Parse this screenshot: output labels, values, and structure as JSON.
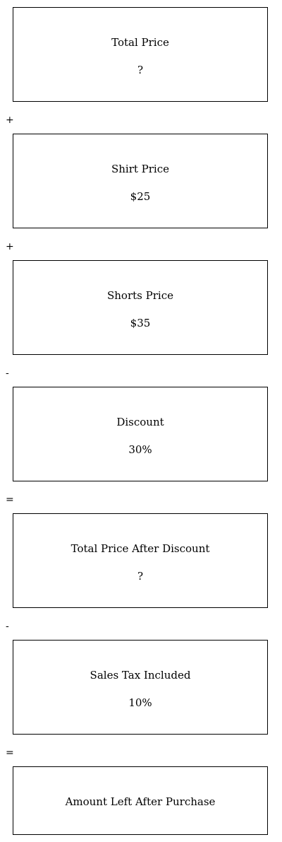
{
  "steps": [
    {
      "label": "Total Price",
      "value": "?"
    },
    {
      "operator": "+"
    },
    {
      "label": "Shirt Price",
      "value": "$25"
    },
    {
      "operator": "+"
    },
    {
      "label": "Shorts Price",
      "value": "$35"
    },
    {
      "operator": "-"
    },
    {
      "label": "Discount",
      "value": "30%"
    },
    {
      "operator": "="
    },
    {
      "label": "Total Price After Discount",
      "value": "?"
    },
    {
      "operator": "-"
    },
    {
      "label": "Sales Tax Included",
      "value": "10%"
    },
    {
      "operator": "="
    },
    {
      "label": "Amount Left After Purchase"
    }
  ]
}
